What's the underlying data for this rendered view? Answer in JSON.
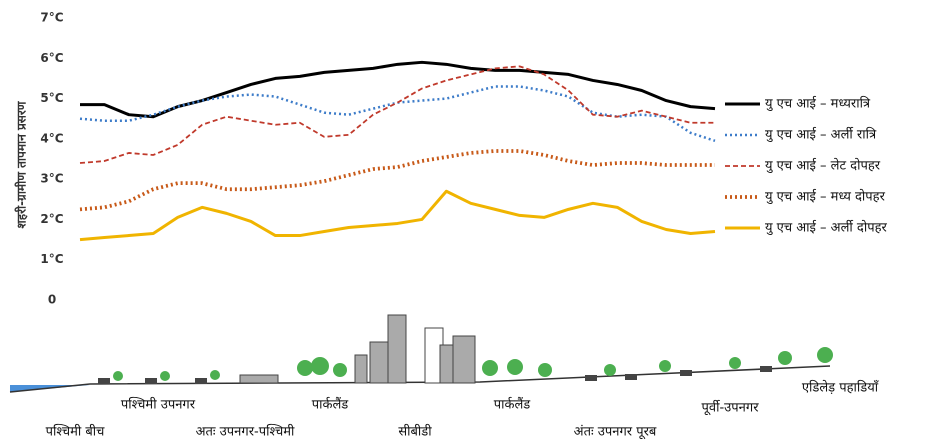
{
  "chart_data": {
    "type": "line",
    "ylabel": "शहरी-ग्रामीण तापमान प्रसरण",
    "categories": [
      null,
      null,
      null,
      null,
      null,
      null,
      null,
      null,
      null,
      null,
      null,
      null,
      null,
      null,
      null,
      null,
      null,
      null,
      null,
      null,
      null,
      null,
      null,
      null,
      null,
      null,
      null
    ],
    "ylim": [
      0,
      7
    ],
    "yticks": [
      0,
      {
        "value": 1,
        "label": "1°C"
      },
      {
        "value": 2,
        "label": "2°C"
      },
      {
        "value": 3,
        "label": "3°C"
      },
      {
        "value": 4,
        "label": "4°C"
      },
      {
        "value": 5,
        "label": "5°C"
      },
      {
        "value": 6,
        "label": "6°C"
      },
      {
        "value": 7,
        "label": "7°C"
      }
    ],
    "grid": false,
    "legend": "right",
    "series": [
      {
        "name": "यु एच आई – मध्यरात्रि",
        "color": "#000000",
        "dash": "solid",
        "values": [
          4.85,
          4.85,
          4.6,
          4.55,
          4.8,
          4.95,
          5.15,
          5.35,
          5.5,
          5.55,
          5.65,
          5.7,
          5.75,
          5.85,
          5.9,
          5.85,
          5.75,
          5.7,
          5.7,
          5.65,
          5.6,
          5.45,
          5.35,
          5.2,
          4.95,
          4.8,
          4.75
        ]
      },
      {
        "name": "यु एच आई – अर्ली रात्रि",
        "color": "#3d7cc9",
        "dash": "dotted",
        "values": [
          4.5,
          4.45,
          4.45,
          4.6,
          4.8,
          4.95,
          5.05,
          5.1,
          5.05,
          4.85,
          4.65,
          4.6,
          4.75,
          4.9,
          4.95,
          5.0,
          5.15,
          5.3,
          5.3,
          5.2,
          5.05,
          4.65,
          4.55,
          4.6,
          4.55,
          4.15,
          3.95
        ]
      },
      {
        "name": "यु एच आई – लेट दोपहर",
        "color": "#c0392b",
        "dash": "dashed",
        "values": [
          3.4,
          3.45,
          3.65,
          3.6,
          3.85,
          4.35,
          4.55,
          4.45,
          4.35,
          4.4,
          4.05,
          4.1,
          4.6,
          4.9,
          5.25,
          5.45,
          5.6,
          5.75,
          5.8,
          5.6,
          5.2,
          4.6,
          4.55,
          4.7,
          4.55,
          4.4,
          4.4
        ]
      },
      {
        "name": "यु एच आई – मध्य दोपहर",
        "color": "#c85a19",
        "dash": "dotted",
        "values": [
          2.25,
          2.3,
          2.45,
          2.75,
          2.9,
          2.9,
          2.75,
          2.75,
          2.8,
          2.85,
          2.95,
          3.1,
          3.25,
          3.3,
          3.45,
          3.55,
          3.65,
          3.7,
          3.7,
          3.6,
          3.45,
          3.35,
          3.4,
          3.4,
          3.35,
          3.35,
          3.35
        ]
      },
      {
        "name": "यु एच आई – अर्ली दोपहर",
        "color": "#f0b400",
        "dash": "solid",
        "values": [
          1.5,
          1.55,
          1.6,
          1.65,
          2.05,
          2.3,
          2.15,
          1.95,
          1.6,
          1.6,
          1.7,
          1.8,
          1.85,
          1.9,
          2.0,
          2.7,
          2.4,
          2.25,
          2.1,
          2.05,
          2.25,
          2.4,
          2.3,
          1.95,
          1.75,
          1.65,
          1.7
        ]
      }
    ],
    "locations": [
      "पश्चिमी बीच",
      "पश्चिमी उपनगर",
      "अतः उपनगर-पश्चिमी",
      "पार्कलैंड",
      "सीबीडी",
      "पार्कलैंड",
      "अंतः उपनगर पूरब",
      "पूर्वी-उपनगर",
      "एडिलेड़ पहाडियाँ"
    ]
  }
}
